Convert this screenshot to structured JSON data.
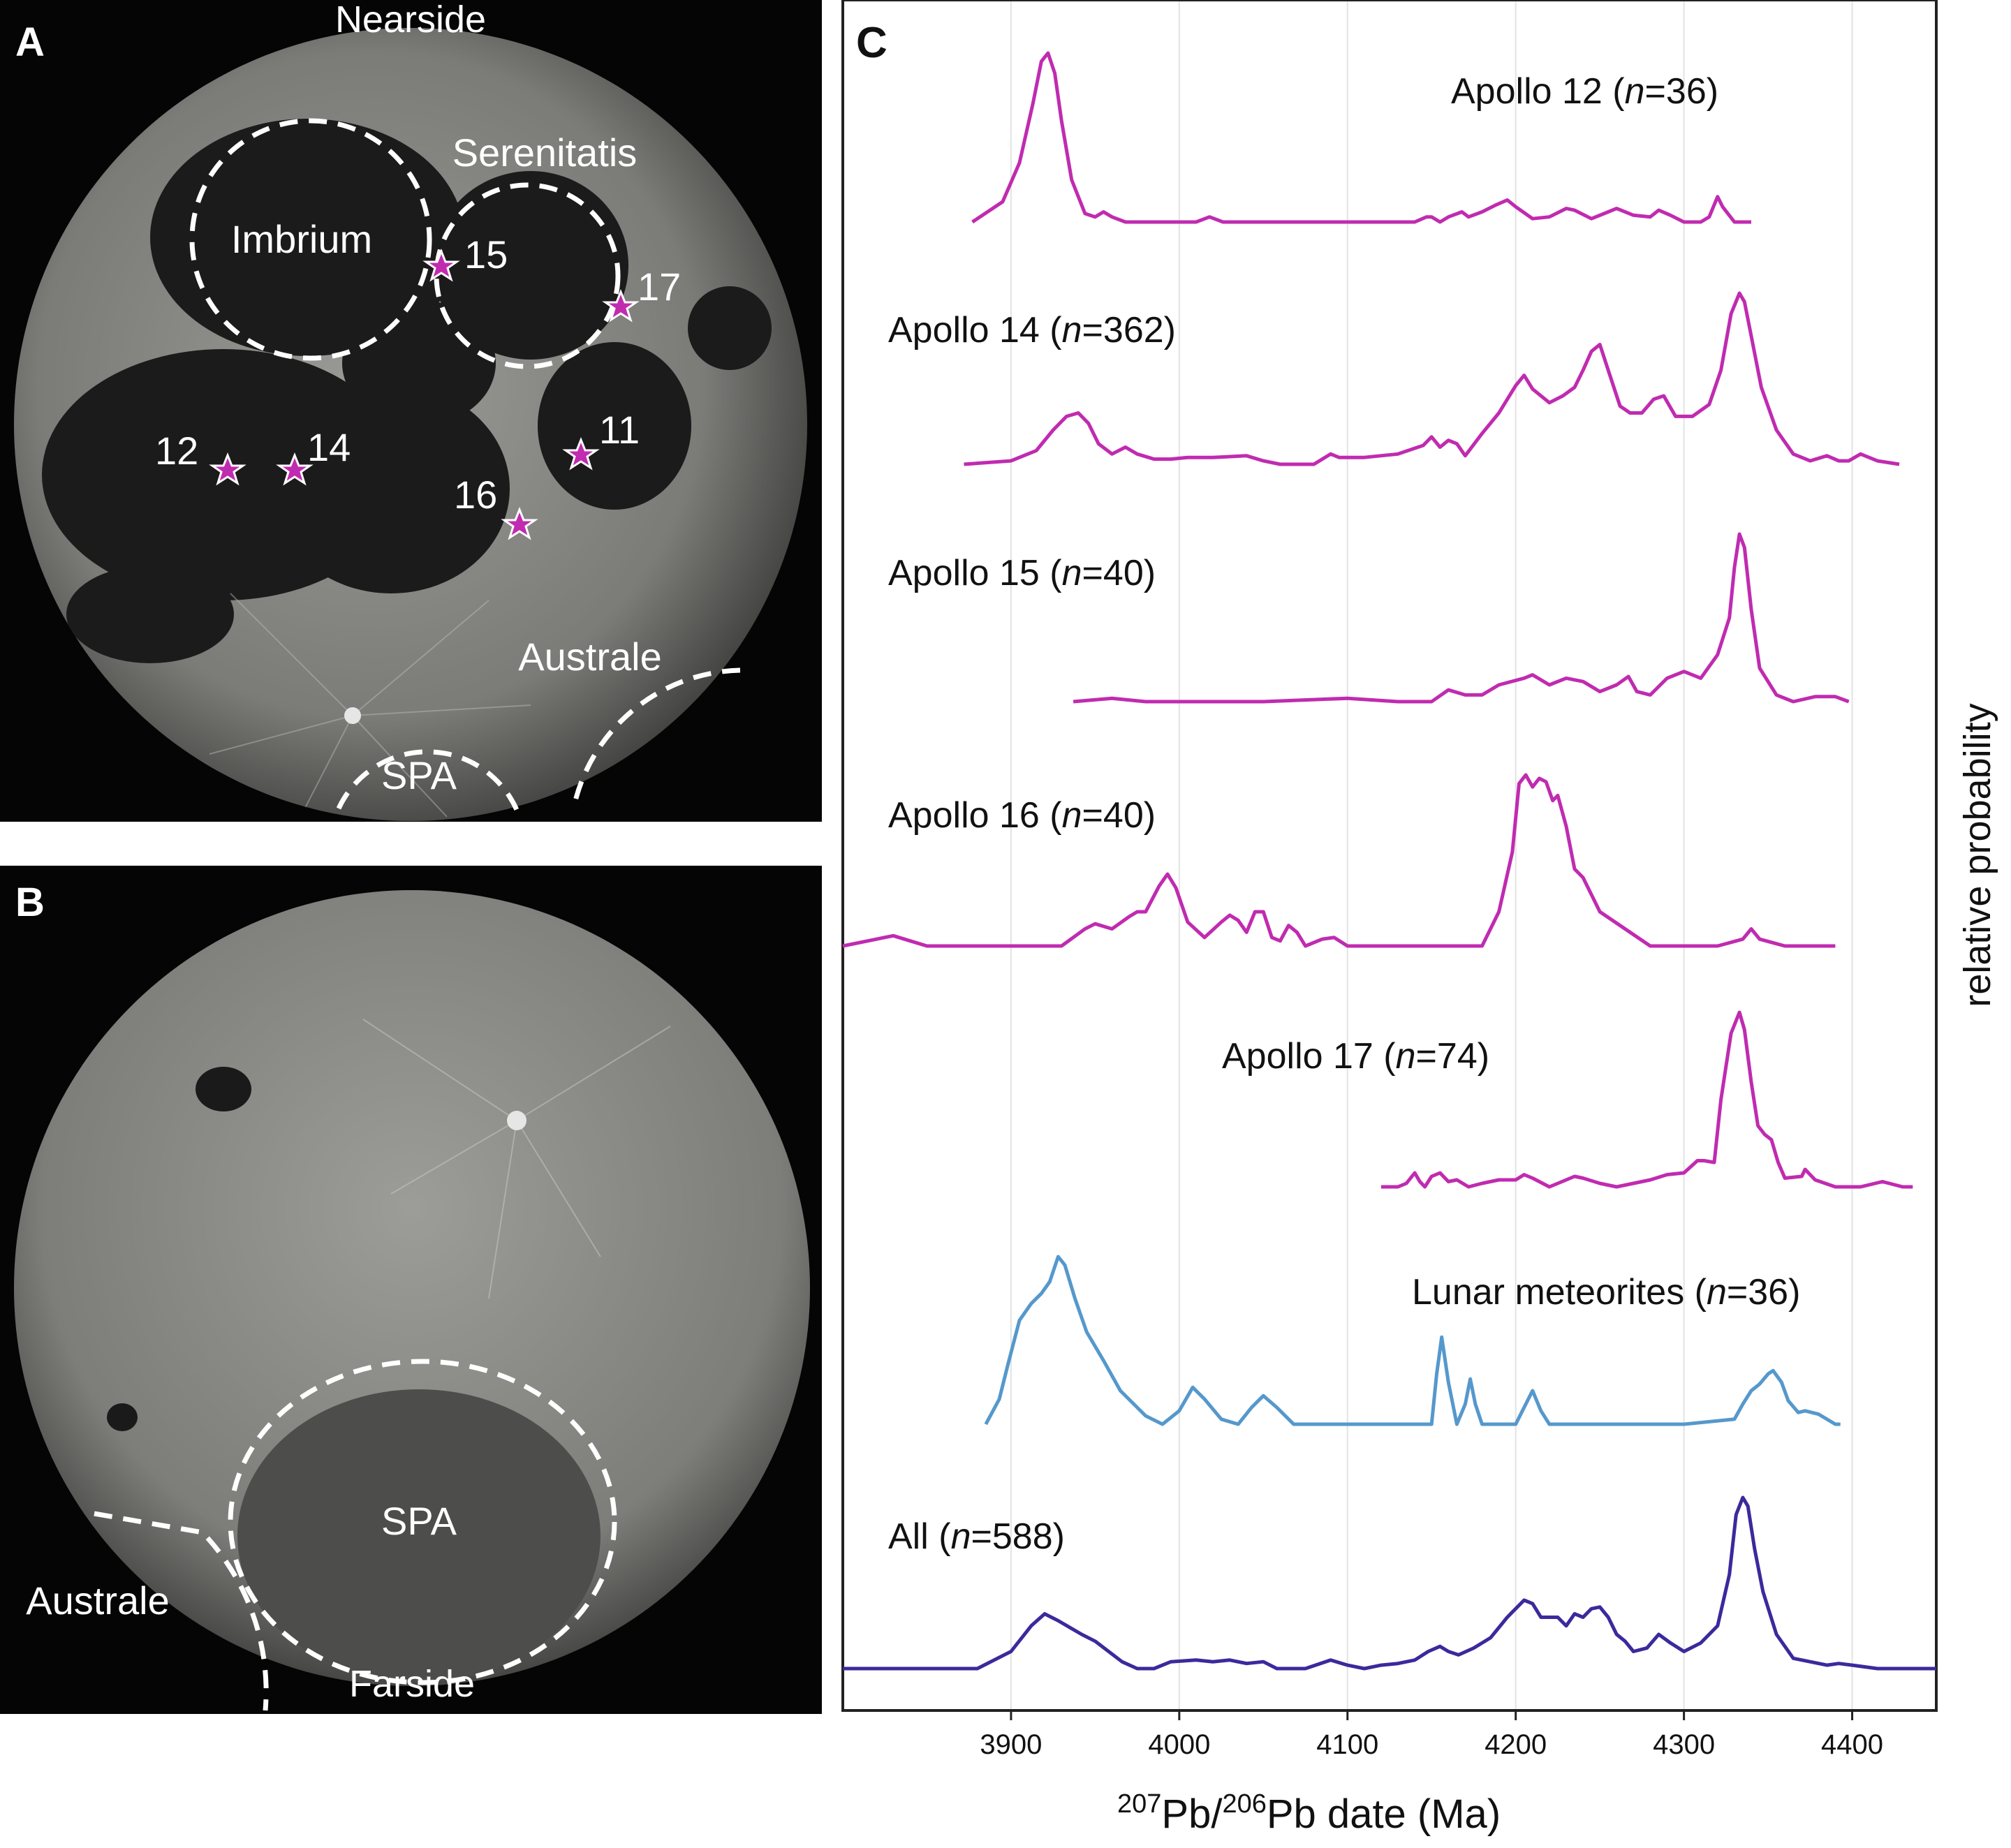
{
  "figure": {
    "panel_a": {
      "letter": "A",
      "top_label": "Nearside",
      "basin_labels": [
        "Imbrium",
        "Serenitatis",
        "Australe",
        "SPA"
      ],
      "site_labels": [
        "15",
        "17",
        "12",
        "14",
        "11",
        "16"
      ],
      "marker_color": "#c02bb0"
    },
    "panel_b": {
      "letter": "B",
      "basin_labels": [
        "SPA",
        "Australe"
      ],
      "bottom_label": "Farside"
    },
    "panel_c": {
      "letter": "C",
      "y_axis_label": "relative probability",
      "x_axis_label": {
        "iso_a": "207",
        "el_a": "Pb/",
        "iso_b": "206",
        "el_b": "Pb date (Ma)"
      }
    }
  },
  "chart_data": {
    "type": "line",
    "title": "",
    "xlabel": "207Pb/206Pb date (Ma)",
    "ylabel": "relative probability",
    "xlim": [
      3800,
      4450
    ],
    "xticks": [
      3900,
      4000,
      4100,
      4200,
      4300,
      4400
    ],
    "grid": "vertical gridlines at ticks",
    "series": [
      {
        "name": "Apollo 12 (n=36)",
        "label_parts": [
          "Apollo 12 (",
          "n",
          "=36)"
        ],
        "color": "#c02bb0",
        "x": [
          3877,
          3895,
          3905,
          3913,
          3918,
          3922,
          3926,
          3930,
          3936,
          3944,
          3950,
          3955,
          3960,
          3968,
          3985,
          4000,
          4010,
          4018,
          4026,
          4040,
          4060,
          4080,
          4100,
          4120,
          4140,
          4147,
          4150,
          4155,
          4160,
          4168,
          4172,
          4180,
          4188,
          4195,
          4200,
          4210,
          4220,
          4230,
          4235,
          4245,
          4255,
          4260,
          4270,
          4280,
          4285,
          4292,
          4300,
          4310,
          4315,
          4320,
          4323,
          4330,
          4340
        ],
        "y": [
          0,
          0.12,
          0.35,
          0.7,
          0.95,
          1.0,
          0.88,
          0.6,
          0.25,
          0.05,
          0.03,
          0.06,
          0.03,
          0.0,
          0.0,
          0.0,
          0.0,
          0.03,
          0.0,
          0.0,
          0.0,
          0.0,
          0.0,
          0.0,
          0.0,
          0.03,
          0.03,
          0.0,
          0.03,
          0.06,
          0.03,
          0.06,
          0.1,
          0.13,
          0.09,
          0.02,
          0.03,
          0.08,
          0.07,
          0.02,
          0.06,
          0.08,
          0.04,
          0.03,
          0.07,
          0.04,
          0.0,
          0.0,
          0.03,
          0.15,
          0.09,
          0.0,
          0.0
        ]
      },
      {
        "name": "Apollo 14 (n=362)",
        "label_parts": [
          "Apollo 14 (",
          "n",
          "=362)"
        ],
        "color": "#c02bb0",
        "x": [
          3872,
          3900,
          3915,
          3925,
          3933,
          3940,
          3946,
          3952,
          3960,
          3968,
          3975,
          3985,
          3995,
          4005,
          4020,
          4040,
          4050,
          4060,
          4080,
          4090,
          4095,
          4110,
          4130,
          4145,
          4150,
          4155,
          4160,
          4165,
          4170,
          4180,
          4190,
          4200,
          4205,
          4210,
          4220,
          4228,
          4235,
          4240,
          4245,
          4250,
          4255,
          4262,
          4268,
          4275,
          4282,
          4288,
          4295,
          4305,
          4315,
          4322,
          4328,
          4333,
          4336,
          4340,
          4346,
          4355,
          4365,
          4375,
          4385,
          4392,
          4398,
          4405,
          4415,
          4428
        ],
        "y": [
          0,
          0.02,
          0.08,
          0.2,
          0.28,
          0.3,
          0.24,
          0.12,
          0.06,
          0.1,
          0.06,
          0.03,
          0.03,
          0.04,
          0.04,
          0.05,
          0.02,
          0.0,
          0.0,
          0.06,
          0.04,
          0.04,
          0.06,
          0.11,
          0.16,
          0.1,
          0.14,
          0.12,
          0.05,
          0.18,
          0.3,
          0.46,
          0.52,
          0.44,
          0.36,
          0.4,
          0.45,
          0.55,
          0.66,
          0.7,
          0.55,
          0.34,
          0.3,
          0.3,
          0.38,
          0.4,
          0.28,
          0.28,
          0.35,
          0.55,
          0.88,
          1.0,
          0.95,
          0.75,
          0.45,
          0.2,
          0.06,
          0.02,
          0.05,
          0.02,
          0.02,
          0.06,
          0.02,
          0.0
        ]
      },
      {
        "name": "Apollo 15 (n=40)",
        "label_parts": [
          "Apollo 15 (",
          "n",
          "=40)"
        ],
        "color": "#c02bb0",
        "x": [
          3937,
          3960,
          3980,
          4000,
          4050,
          4100,
          4130,
          4150,
          4160,
          4170,
          4180,
          4190,
          4205,
          4210,
          4220,
          4230,
          4240,
          4250,
          4260,
          4267,
          4272,
          4280,
          4290,
          4300,
          4310,
          4320,
          4327,
          4330,
          4333,
          4336,
          4340,
          4345,
          4355,
          4365,
          4378,
          4390,
          4398
        ],
        "y": [
          0,
          0.02,
          0.0,
          0.0,
          0.0,
          0.02,
          0.0,
          0.0,
          0.07,
          0.04,
          0.04,
          0.1,
          0.14,
          0.16,
          0.1,
          0.14,
          0.12,
          0.06,
          0.1,
          0.15,
          0.06,
          0.04,
          0.14,
          0.18,
          0.14,
          0.28,
          0.5,
          0.8,
          1.0,
          0.92,
          0.55,
          0.2,
          0.04,
          0.0,
          0.03,
          0.03,
          0.0
        ]
      },
      {
        "name": "Apollo 16 (n=40)",
        "label_parts": [
          "Apollo 16 (",
          "n",
          "=40)"
        ],
        "color": "#c02bb0",
        "x": [
          3800,
          3820,
          3830,
          3840,
          3850,
          3900,
          3930,
          3944,
          3950,
          3960,
          3970,
          3975,
          3980,
          3988,
          3993,
          3998,
          4005,
          4015,
          4025,
          4030,
          4035,
          4040,
          4045,
          4050,
          4055,
          4060,
          4065,
          4070,
          4075,
          4085,
          4092,
          4100,
          4150,
          4180,
          4190,
          4198,
          4202,
          4206,
          4210,
          4214,
          4218,
          4222,
          4225,
          4230,
          4235,
          4240,
          4250,
          4280,
          4320,
          4335,
          4340,
          4345,
          4360,
          4390
        ],
        "y": [
          0,
          0.04,
          0.06,
          0.03,
          0.0,
          0.0,
          0.0,
          0.1,
          0.13,
          0.1,
          0.17,
          0.2,
          0.2,
          0.35,
          0.42,
          0.34,
          0.14,
          0.05,
          0.14,
          0.18,
          0.15,
          0.08,
          0.2,
          0.2,
          0.05,
          0.03,
          0.12,
          0.08,
          0.0,
          0.04,
          0.05,
          0.0,
          0.0,
          0.0,
          0.2,
          0.55,
          0.95,
          1.0,
          0.93,
          0.98,
          0.96,
          0.85,
          0.88,
          0.7,
          0.45,
          0.4,
          0.2,
          0.0,
          0.0,
          0.04,
          0.1,
          0.04,
          0.0,
          0.0
        ]
      },
      {
        "name": "Apollo 17 (n=74)",
        "label_parts": [
          "Apollo 17 (",
          "n",
          "=74)"
        ],
        "color": "#c02bb0",
        "x": [
          4120,
          4130,
          4135,
          4140,
          4143,
          4146,
          4150,
          4155,
          4160,
          4165,
          4172,
          4180,
          4190,
          4200,
          4205,
          4210,
          4220,
          4230,
          4235,
          4240,
          4250,
          4260,
          4270,
          4280,
          4290,
          4300,
          4308,
          4312,
          4318,
          4322,
          4328,
          4333,
          4336,
          4340,
          4344,
          4348,
          4352,
          4356,
          4360,
          4370,
          4372,
          4378,
          4390,
          4405,
          4418,
          4430,
          4436
        ],
        "y": [
          0,
          0.0,
          0.02,
          0.08,
          0.03,
          0.0,
          0.06,
          0.08,
          0.03,
          0.04,
          0.0,
          0.02,
          0.04,
          0.04,
          0.07,
          0.05,
          0.0,
          0.04,
          0.06,
          0.05,
          0.02,
          0.0,
          0.02,
          0.04,
          0.07,
          0.08,
          0.15,
          0.15,
          0.14,
          0.5,
          0.88,
          1.0,
          0.9,
          0.6,
          0.35,
          0.3,
          0.27,
          0.14,
          0.05,
          0.06,
          0.1,
          0.04,
          0.0,
          0.0,
          0.03,
          0.0,
          0.0
        ]
      },
      {
        "name": "Lunar meteorites (n=36)",
        "label_parts": [
          "Lunar meteorites (",
          "n",
          "=36)"
        ],
        "color": "#5598cc",
        "x": [
          3885,
          3893,
          3898,
          3905,
          3912,
          3918,
          3923,
          3928,
          3932,
          3938,
          3945,
          3955,
          3965,
          3980,
          3990,
          4000,
          4008,
          4015,
          4025,
          4035,
          4043,
          4050,
          4058,
          4068,
          4080,
          4100,
          4140,
          4150,
          4153,
          4156,
          4160,
          4165,
          4170,
          4173,
          4176,
          4180,
          4185,
          4200,
          4205,
          4210,
          4215,
          4220,
          4300,
          4330,
          4335,
          4340,
          4345,
          4350,
          4353,
          4358,
          4362,
          4368,
          4372,
          4380,
          4390,
          4393
        ],
        "y": [
          0,
          0.15,
          0.35,
          0.62,
          0.72,
          0.78,
          0.85,
          1.0,
          0.95,
          0.75,
          0.55,
          0.38,
          0.2,
          0.05,
          0.0,
          0.08,
          0.22,
          0.15,
          0.03,
          0.0,
          0.1,
          0.17,
          0.1,
          0.0,
          0.0,
          0.0,
          0.0,
          0.0,
          0.3,
          0.52,
          0.25,
          0.0,
          0.12,
          0.27,
          0.12,
          0.0,
          0.0,
          0.0,
          0.1,
          0.2,
          0.08,
          0.0,
          0.0,
          0.03,
          0.12,
          0.2,
          0.24,
          0.3,
          0.32,
          0.25,
          0.14,
          0.07,
          0.08,
          0.06,
          0.0,
          0.0
        ]
      },
      {
        "name": "All (n=588)",
        "label_parts": [
          "All (",
          "n",
          "=588)"
        ],
        "color": "#3a2a9c",
        "x": [
          3800,
          3850,
          3880,
          3900,
          3912,
          3920,
          3928,
          3935,
          3942,
          3950,
          3958,
          3966,
          3975,
          3985,
          3995,
          4010,
          4020,
          4030,
          4040,
          4050,
          4058,
          4065,
          4075,
          4090,
          4100,
          4110,
          4120,
          4130,
          4140,
          4148,
          4155,
          4160,
          4166,
          4175,
          4185,
          4195,
          4205,
          4210,
          4215,
          4220,
          4225,
          4230,
          4235,
          4240,
          4245,
          4250,
          4255,
          4260,
          4265,
          4270,
          4278,
          4285,
          4292,
          4300,
          4310,
          4320,
          4327,
          4331,
          4335,
          4338,
          4342,
          4347,
          4355,
          4365,
          4375,
          4385,
          4392,
          4400,
          4415,
          4430,
          4450
        ],
        "y": [
          0,
          0.0,
          0.0,
          0.1,
          0.25,
          0.32,
          0.28,
          0.24,
          0.2,
          0.16,
          0.1,
          0.04,
          0.0,
          0.0,
          0.04,
          0.05,
          0.04,
          0.05,
          0.03,
          0.04,
          0.0,
          0.0,
          0.0,
          0.05,
          0.02,
          0.0,
          0.02,
          0.03,
          0.05,
          0.1,
          0.13,
          0.1,
          0.08,
          0.12,
          0.18,
          0.3,
          0.4,
          0.38,
          0.3,
          0.3,
          0.3,
          0.25,
          0.32,
          0.3,
          0.35,
          0.36,
          0.3,
          0.2,
          0.16,
          0.1,
          0.12,
          0.2,
          0.15,
          0.1,
          0.15,
          0.25,
          0.55,
          0.9,
          1.0,
          0.95,
          0.7,
          0.45,
          0.2,
          0.06,
          0.04,
          0.02,
          0.03,
          0.02,
          0.0,
          0.0,
          0.0
        ]
      }
    ]
  }
}
